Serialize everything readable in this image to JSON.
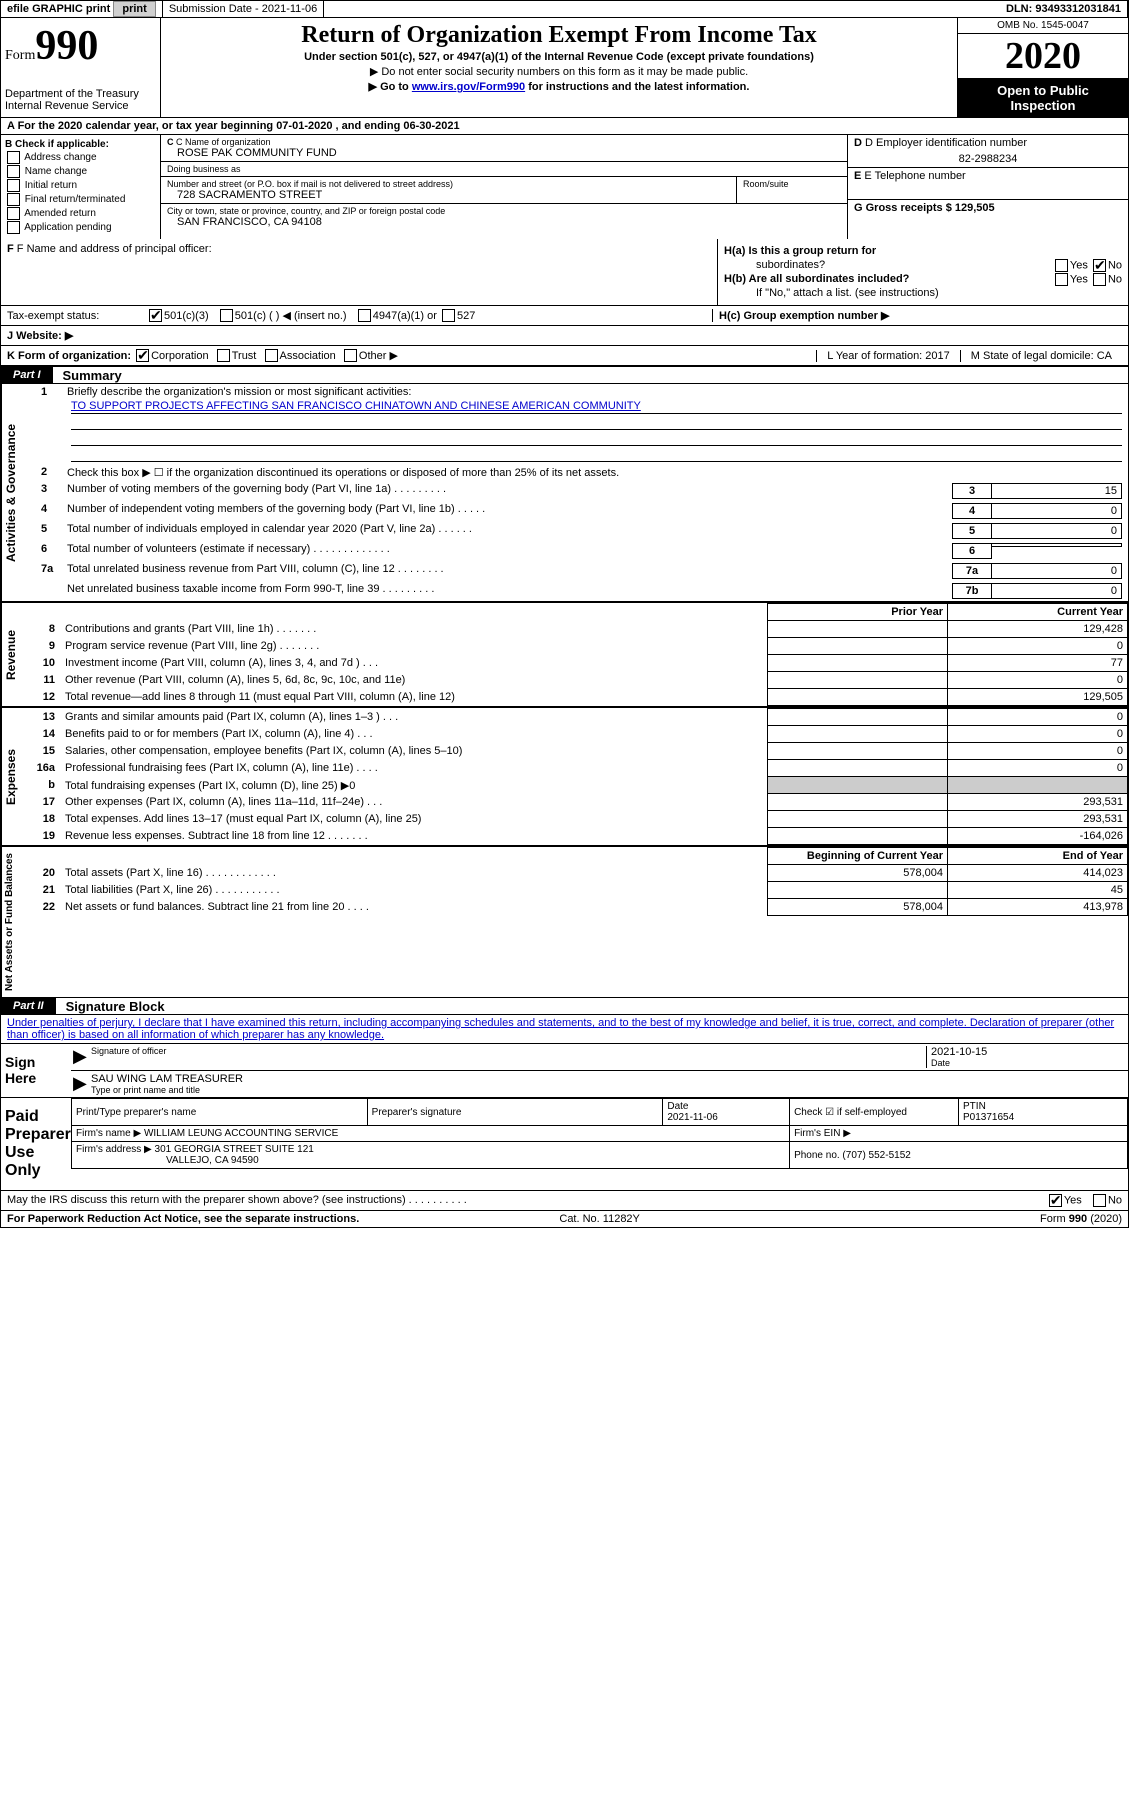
{
  "topbar": {
    "efile_label": "efile GRAPHIC print",
    "submission_label": "Submission Date - 2021-11-06",
    "dln_label": "DLN: 93493312031841"
  },
  "header": {
    "form_word": "Form",
    "form_number": "990",
    "dept": "Department of the Treasury",
    "irs": "Internal Revenue Service",
    "title": "Return of Organization Exempt From Income Tax",
    "subtitle": "Under section 501(c), 527, or 4947(a)(1) of the Internal Revenue Code (except private foundations)",
    "instr1": "Do not enter social security numbers on this form as it may be made public.",
    "instr2_pre": "Go to ",
    "instr2_link": "www.irs.gov/Form990",
    "instr2_post": " for instructions and the latest information.",
    "omb": "OMB No. 1545-0047",
    "year": "2020",
    "inspection1": "Open to Public",
    "inspection2": "Inspection"
  },
  "row_a": "A For the 2020 calendar year, or tax year beginning 07-01-2020   , and ending 06-30-2021",
  "section_b": {
    "hdr": "B Check if applicable:",
    "opts": [
      "Address change",
      "Name change",
      "Initial return",
      "Final return/terminated",
      "Amended return",
      "Application pending"
    ]
  },
  "section_c": {
    "name_label": "C Name of organization",
    "name": "ROSE PAK COMMUNITY FUND",
    "dba_label": "Doing business as",
    "dba": "",
    "addr_label": "Number and street (or P.O. box if mail is not delivered to street address)",
    "room_label": "Room/suite",
    "addr": "728 SACRAMENTO STREET",
    "city_label": "City or town, state or province, country, and ZIP or foreign postal code",
    "city": "SAN FRANCISCO, CA  94108"
  },
  "section_d": {
    "ein_label": "D Employer identification number",
    "ein": "82-2988234",
    "tel_label": "E Telephone number",
    "tel": "",
    "gross_label": "G Gross receipts $ 129,505"
  },
  "section_f": {
    "label": "F  Name and address of principal officer:",
    "value": ""
  },
  "section_h": {
    "ha": "H(a)  Is this a group return for",
    "ha2": "subordinates?",
    "hb": "H(b)  Are all subordinates included?",
    "hb_note": "If \"No,\" attach a list. (see instructions)",
    "hc": "H(c)  Group exemption number ▶",
    "yes": "Yes",
    "no": "No"
  },
  "tax_status": {
    "label": "Tax-exempt status:",
    "opts": [
      "501(c)(3)",
      "501(c) (  ) ◀ (insert no.)",
      "4947(a)(1) or",
      "527"
    ]
  },
  "website": {
    "label": "J   Website: ▶",
    "value": ""
  },
  "row_k": {
    "label": "K Form of organization:",
    "opts": [
      "Corporation",
      "Trust",
      "Association",
      "Other ▶"
    ],
    "l_label": "L Year of formation: 2017",
    "m_label": "M State of legal domicile: CA"
  },
  "part1": {
    "tab": "Part I",
    "title": "Summary",
    "side_gov": "Activities & Governance",
    "side_rev": "Revenue",
    "side_exp": "Expenses",
    "side_net": "Net Assets or Fund Balances",
    "line1_label": "Briefly describe the organization's mission or most significant activities:",
    "line1_value": "TO SUPPORT PROJECTS AFFECTING SAN FRANCISCO CHINATOWN AND CHINESE AMERICAN COMMUNITY",
    "line2": "Check this box ▶ ☐  if the organization discontinued its operations or disposed of more than 25% of its net assets.",
    "lines_gov": [
      {
        "n": "3",
        "d": "Number of voting members of the governing body (Part VI, line 1a)  .   .   .   .   .   .   .   .   .",
        "box": "3",
        "v": "15"
      },
      {
        "n": "4",
        "d": "Number of independent voting members of the governing body (Part VI, line 1b)  .   .   .   .   .",
        "box": "4",
        "v": "0"
      },
      {
        "n": "5",
        "d": "Total number of individuals employed in calendar year 2020 (Part V, line 2a)   .   .   .   .   .   .",
        "box": "5",
        "v": "0"
      },
      {
        "n": "6",
        "d": "Total number of volunteers (estimate if necessary)   .   .   .   .   .   .   .   .   .   .   .   .   .",
        "box": "6",
        "v": ""
      },
      {
        "n": "7a",
        "d": "Total unrelated business revenue from Part VIII, column (C), line 12  .   .   .   .   .   .   .   .",
        "box": "7a",
        "v": "0"
      },
      {
        "n": "",
        "d": "Net unrelated business taxable income from Form 990-T, line 39  .   .   .   .   .   .   .   .   .",
        "box": "7b",
        "v": "0"
      }
    ],
    "col_prior": "Prior Year",
    "col_current": "Current Year",
    "col_begin": "Beginning of Current Year",
    "col_end": "End of Year",
    "lines_rev": [
      {
        "n": "8",
        "d": "Contributions and grants (Part VIII, line 1h)   .   .   .   .   .   .   .",
        "p": "",
        "c": "129,428"
      },
      {
        "n": "9",
        "d": "Program service revenue (Part VIII, line 2g)   .   .   .   .   .   .   .",
        "p": "",
        "c": "0"
      },
      {
        "n": "10",
        "d": "Investment income (Part VIII, column (A), lines 3, 4, and 7d )   .   .   .",
        "p": "",
        "c": "77"
      },
      {
        "n": "11",
        "d": "Other revenue (Part VIII, column (A), lines 5, 6d, 8c, 9c, 10c, and 11e)",
        "p": "",
        "c": "0"
      },
      {
        "n": "12",
        "d": "Total revenue—add lines 8 through 11 (must equal Part VIII, column (A), line 12)",
        "p": "",
        "c": "129,505"
      }
    ],
    "lines_exp": [
      {
        "n": "13",
        "d": "Grants and similar amounts paid (Part IX, column (A), lines 1–3 )   .   .   .",
        "p": "",
        "c": "0"
      },
      {
        "n": "14",
        "d": "Benefits paid to or for members (Part IX, column (A), line 4)   .   .   .",
        "p": "",
        "c": "0"
      },
      {
        "n": "15",
        "d": "Salaries, other compensation, employee benefits (Part IX, column (A), lines 5–10)",
        "p": "",
        "c": "0"
      },
      {
        "n": "16a",
        "d": "Professional fundraising fees (Part IX, column (A), line 11e)   .   .   .   .",
        "p": "",
        "c": "0"
      },
      {
        "n": "b",
        "d": "Total fundraising expenses (Part IX, column (D), line 25) ▶0",
        "p": "shaded",
        "c": "shaded"
      },
      {
        "n": "17",
        "d": "Other expenses (Part IX, column (A), lines 11a–11d, 11f–24e)   .   .   .",
        "p": "",
        "c": "293,531"
      },
      {
        "n": "18",
        "d": "Total expenses. Add lines 13–17 (must equal Part IX, column (A), line 25)",
        "p": "",
        "c": "293,531"
      },
      {
        "n": "19",
        "d": "Revenue less expenses. Subtract line 18 from line 12  .   .   .   .   .   .   .",
        "p": "",
        "c": "-164,026"
      }
    ],
    "lines_net": [
      {
        "n": "20",
        "d": "Total assets (Part X, line 16)   .   .   .   .   .   .   .   .   .   .   .   .",
        "p": "578,004",
        "c": "414,023"
      },
      {
        "n": "21",
        "d": "Total liabilities (Part X, line 26)  .   .   .   .   .   .   .   .   .   .   .",
        "p": "",
        "c": "45"
      },
      {
        "n": "22",
        "d": "Net assets or fund balances. Subtract line 21 from line 20  .   .   .   .",
        "p": "578,004",
        "c": "413,978"
      }
    ]
  },
  "part2": {
    "tab": "Part II",
    "title": "Signature Block",
    "perjury": "Under penalties of perjury, I declare that I have examined this return, including accompanying schedules and statements, and to the best of my knowledge and belief, it is true, correct, and complete. Declaration of preparer (other than officer) is based on all information of which preparer has any knowledge."
  },
  "sign": {
    "left": "Sign Here",
    "sig_label": "Signature of officer",
    "date_label": "Date",
    "date": "2021-10-15",
    "name": "SAU WING LAM  TREASURER",
    "name_label": "Type or print name and title"
  },
  "prep": {
    "left": "Paid Preparer Use Only",
    "h1": "Print/Type preparer's name",
    "h2": "Preparer's signature",
    "h3": "Date",
    "h3v": "2021-11-06",
    "h4": "Check ☑ if self-employed",
    "h5": "PTIN",
    "h5v": "P01371654",
    "firm_label": "Firm's name      ▶",
    "firm": "WILLIAM LEUNG ACCOUNTING SERVICE",
    "ein_label": "Firm's EIN ▶",
    "addr_label": "Firm's address ▶",
    "addr": "301 GEORGIA STREET SUITE 121",
    "addr2": "VALLEJO, CA  94590",
    "phone_label": "Phone no. (707) 552-5152"
  },
  "discuss": {
    "q": "May the IRS discuss this return with the preparer shown above? (see instructions)   .   .   .   .   .   .   .   .   .   .",
    "yes": "Yes",
    "no": "No"
  },
  "footer": {
    "left": "For Paperwork Reduction Act Notice, see the separate instructions.",
    "mid": "Cat. No. 11282Y",
    "right": "Form 990 (2020)"
  },
  "colors": {
    "link": "#0000cc",
    "shaded": "#cccccc"
  }
}
